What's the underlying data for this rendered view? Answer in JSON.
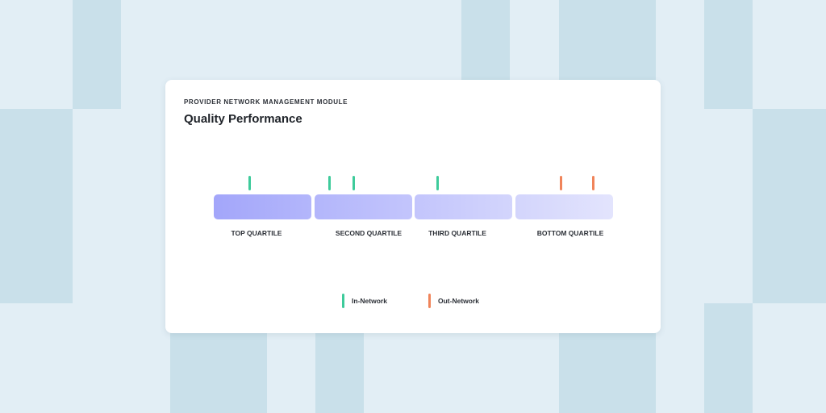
{
  "header": {
    "eyebrow": "PROVIDER NETWORK MANAGEMENT MODULE",
    "title": "Quality Performance"
  },
  "colors": {
    "page_background": "#e2eef5",
    "background_blocks": "#c9e0ea",
    "card": "#ffffff",
    "in_network": "#3ecb9b",
    "out_network": "#f0845a",
    "quartile_gradient_start": "#a3a6fa",
    "quartile_gradient_end": "#e3e4fd"
  },
  "quartiles": [
    {
      "label": "TOP QUARTILE"
    },
    {
      "label": "SECOND QUARTILE"
    },
    {
      "label": "THIRD QUARTILE"
    },
    {
      "label": "BOTTOM QUARTILE"
    }
  ],
  "providers": [
    {
      "network": "in",
      "position": 0.09
    },
    {
      "network": "in",
      "position": 0.29
    },
    {
      "network": "in",
      "position": 0.35
    },
    {
      "network": "in",
      "position": 0.56
    },
    {
      "network": "out",
      "position": 0.87
    },
    {
      "network": "out",
      "position": 0.95
    }
  ],
  "legend": {
    "in_network_label": "In-Network",
    "out_network_label": "Out-Network"
  }
}
